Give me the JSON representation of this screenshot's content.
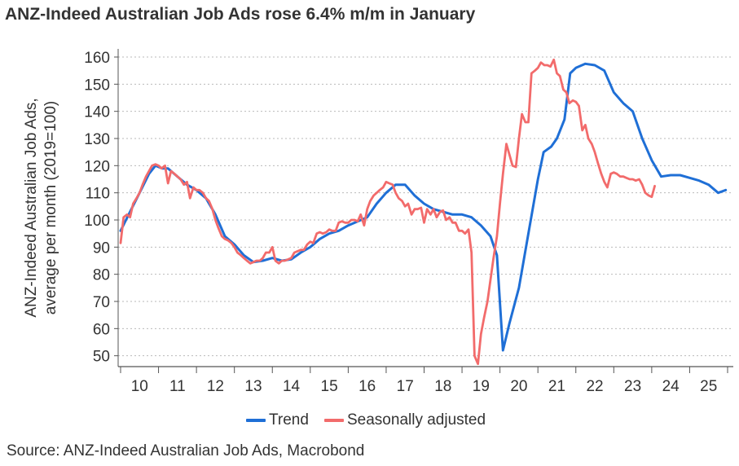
{
  "title": "ANZ-Indeed Australian Job Ads rose 6.4% m/m in January",
  "source": "Source: ANZ-Indeed Australian Job Ads, Macrobond",
  "chart_data": {
    "type": "line",
    "title": "ANZ-Indeed Australian Job Ads rose 6.4% m/m in January",
    "ylabel_lines": [
      "ANZ-Indeed Australian Job Ads,",
      "average per month (2019=100)"
    ],
    "xlabel": "",
    "ylim": [
      46,
      163
    ],
    "yticks": [
      50,
      60,
      70,
      80,
      90,
      100,
      110,
      120,
      130,
      140,
      150,
      160
    ],
    "xlim": [
      2010.0,
      2026.0
    ],
    "xticks": [
      "10",
      "11",
      "12",
      "13",
      "14",
      "15",
      "16",
      "17",
      "18",
      "19",
      "20",
      "21",
      "22",
      "23",
      "24",
      "25"
    ],
    "grid": "horizontal dotted",
    "legend_placement": "bottom-center",
    "series": [
      {
        "name": "Trend",
        "color": "#1f6fd6",
        "points": [
          [
            2010.0,
            96
          ],
          [
            2010.25,
            103
          ],
          [
            2010.5,
            110
          ],
          [
            2010.75,
            117
          ],
          [
            2010.92,
            120
          ],
          [
            2011.1,
            119
          ],
          [
            2011.25,
            119
          ],
          [
            2011.5,
            116
          ],
          [
            2011.75,
            113
          ],
          [
            2012.0,
            111
          ],
          [
            2012.25,
            108
          ],
          [
            2012.5,
            102
          ],
          [
            2012.75,
            94
          ],
          [
            2013.0,
            91
          ],
          [
            2013.25,
            87
          ],
          [
            2013.5,
            84.5
          ],
          [
            2013.75,
            85
          ],
          [
            2014.0,
            86
          ],
          [
            2014.25,
            85
          ],
          [
            2014.5,
            85.5
          ],
          [
            2014.75,
            88
          ],
          [
            2015.0,
            90
          ],
          [
            2015.25,
            93
          ],
          [
            2015.5,
            95
          ],
          [
            2015.75,
            96
          ],
          [
            2016.0,
            98
          ],
          [
            2016.25,
            99.5
          ],
          [
            2016.5,
            101
          ],
          [
            2016.75,
            106
          ],
          [
            2017.0,
            110
          ],
          [
            2017.25,
            113
          ],
          [
            2017.5,
            113
          ],
          [
            2017.75,
            109
          ],
          [
            2018.0,
            106
          ],
          [
            2018.25,
            104
          ],
          [
            2018.5,
            103
          ],
          [
            2018.75,
            102
          ],
          [
            2019.0,
            102
          ],
          [
            2019.25,
            101
          ],
          [
            2019.5,
            98
          ],
          [
            2019.75,
            94
          ],
          [
            2019.92,
            87
          ],
          [
            2020.08,
            52
          ],
          [
            2020.25,
            62
          ],
          [
            2020.5,
            75
          ],
          [
            2020.75,
            95
          ],
          [
            2021.0,
            115
          ],
          [
            2021.15,
            125
          ],
          [
            2021.35,
            127
          ],
          [
            2021.5,
            130
          ],
          [
            2021.7,
            137
          ],
          [
            2021.85,
            154
          ],
          [
            2022.0,
            156
          ],
          [
            2022.25,
            157.5
          ],
          [
            2022.5,
            157
          ],
          [
            2022.75,
            155
          ],
          [
            2023.0,
            147
          ],
          [
            2023.25,
            143
          ],
          [
            2023.5,
            140
          ],
          [
            2023.75,
            130
          ],
          [
            2024.0,
            122
          ],
          [
            2024.25,
            116
          ],
          [
            2024.5,
            116.5
          ],
          [
            2024.75,
            116.5
          ],
          [
            2025.0,
            115.5
          ],
          [
            2025.25,
            114.5
          ],
          [
            2025.5,
            113
          ],
          [
            2025.75,
            110
          ],
          [
            2025.95,
            111
          ]
        ]
      },
      {
        "name": "Seasonally adjusted",
        "color": "#f26b6b",
        "points": [
          [
            2010.0,
            91.5
          ],
          [
            2010.08,
            101
          ],
          [
            2010.17,
            102
          ],
          [
            2010.25,
            101
          ],
          [
            2010.33,
            106
          ],
          [
            2010.42,
            108
          ],
          [
            2010.5,
            110
          ],
          [
            2010.58,
            113
          ],
          [
            2010.67,
            116
          ],
          [
            2010.75,
            118
          ],
          [
            2010.83,
            120
          ],
          [
            2010.92,
            120.5
          ],
          [
            2011.0,
            120
          ],
          [
            2011.08,
            119
          ],
          [
            2011.17,
            120
          ],
          [
            2011.25,
            113.5
          ],
          [
            2011.33,
            118
          ],
          [
            2011.42,
            117
          ],
          [
            2011.5,
            116
          ],
          [
            2011.58,
            115
          ],
          [
            2011.67,
            113
          ],
          [
            2011.75,
            114
          ],
          [
            2011.83,
            108
          ],
          [
            2011.92,
            112
          ],
          [
            2012.0,
            111
          ],
          [
            2012.08,
            111
          ],
          [
            2012.17,
            110
          ],
          [
            2012.25,
            108
          ],
          [
            2012.33,
            107
          ],
          [
            2012.42,
            104
          ],
          [
            2012.5,
            100
          ],
          [
            2012.58,
            97
          ],
          [
            2012.67,
            94
          ],
          [
            2012.75,
            93
          ],
          [
            2012.83,
            92.5
          ],
          [
            2012.92,
            91.5
          ],
          [
            2013.0,
            90
          ],
          [
            2013.08,
            88
          ],
          [
            2013.17,
            87
          ],
          [
            2013.25,
            86
          ],
          [
            2013.33,
            85
          ],
          [
            2013.42,
            84
          ],
          [
            2013.5,
            84.5
          ],
          [
            2013.58,
            85
          ],
          [
            2013.67,
            85
          ],
          [
            2013.75,
            86
          ],
          [
            2013.83,
            88
          ],
          [
            2013.92,
            88
          ],
          [
            2014.0,
            90
          ],
          [
            2014.08,
            85
          ],
          [
            2014.17,
            84
          ],
          [
            2014.25,
            85
          ],
          [
            2014.33,
            85
          ],
          [
            2014.42,
            85.5
          ],
          [
            2014.5,
            86
          ],
          [
            2014.58,
            88
          ],
          [
            2014.67,
            88.5
          ],
          [
            2014.75,
            89
          ],
          [
            2014.83,
            89
          ],
          [
            2014.92,
            91
          ],
          [
            2015.0,
            92
          ],
          [
            2015.08,
            91.5
          ],
          [
            2015.17,
            95
          ],
          [
            2015.25,
            95.5
          ],
          [
            2015.33,
            95
          ],
          [
            2015.42,
            95.5
          ],
          [
            2015.5,
            96.5
          ],
          [
            2015.58,
            96
          ],
          [
            2015.67,
            96
          ],
          [
            2015.75,
            99
          ],
          [
            2015.83,
            99.5
          ],
          [
            2015.92,
            99
          ],
          [
            2016.0,
            99
          ],
          [
            2016.08,
            100
          ],
          [
            2016.17,
            100
          ],
          [
            2016.25,
            99.5
          ],
          [
            2016.33,
            102
          ],
          [
            2016.42,
            98
          ],
          [
            2016.5,
            104
          ],
          [
            2016.58,
            107
          ],
          [
            2016.67,
            109
          ],
          [
            2016.75,
            110
          ],
          [
            2016.83,
            111
          ],
          [
            2016.92,
            112
          ],
          [
            2017.0,
            114
          ],
          [
            2017.08,
            113.5
          ],
          [
            2017.17,
            113
          ],
          [
            2017.25,
            110
          ],
          [
            2017.33,
            108
          ],
          [
            2017.42,
            107
          ],
          [
            2017.5,
            105
          ],
          [
            2017.58,
            106
          ],
          [
            2017.67,
            102
          ],
          [
            2017.75,
            104
          ],
          [
            2017.83,
            104
          ],
          [
            2017.92,
            104.5
          ],
          [
            2018.0,
            99
          ],
          [
            2018.08,
            104
          ],
          [
            2018.17,
            102
          ],
          [
            2018.25,
            104
          ],
          [
            2018.33,
            101
          ],
          [
            2018.42,
            103
          ],
          [
            2018.5,
            103.5
          ],
          [
            2018.58,
            100
          ],
          [
            2018.67,
            101
          ],
          [
            2018.75,
            99
          ],
          [
            2018.83,
            99
          ],
          [
            2018.92,
            96
          ],
          [
            2019.0,
            96
          ],
          [
            2019.08,
            95
          ],
          [
            2019.17,
            96.5
          ],
          [
            2019.25,
            88
          ],
          [
            2019.33,
            50
          ],
          [
            2019.42,
            47
          ],
          [
            2019.5,
            58
          ],
          [
            2019.58,
            64
          ],
          [
            2019.67,
            70
          ],
          [
            2019.75,
            78
          ],
          [
            2019.83,
            86
          ],
          [
            2019.92,
            94
          ],
          [
            2020.0,
            106
          ],
          [
            2020.08,
            117
          ],
          [
            2020.17,
            128
          ],
          [
            2020.25,
            124
          ],
          [
            2020.33,
            120
          ],
          [
            2020.42,
            119.5
          ],
          [
            2020.5,
            130
          ],
          [
            2020.58,
            139
          ],
          [
            2020.67,
            136
          ],
          [
            2020.75,
            136
          ],
          [
            2020.83,
            154
          ],
          [
            2020.92,
            155
          ],
          [
            2021.0,
            156
          ],
          [
            2021.08,
            158
          ],
          [
            2021.17,
            157
          ],
          [
            2021.25,
            157
          ],
          [
            2021.33,
            156.5
          ],
          [
            2021.42,
            159
          ],
          [
            2021.5,
            154
          ],
          [
            2021.58,
            153
          ],
          [
            2021.67,
            148
          ],
          [
            2021.75,
            147
          ],
          [
            2021.83,
            143
          ],
          [
            2021.92,
            144
          ],
          [
            2022.0,
            143.5
          ],
          [
            2022.08,
            142
          ],
          [
            2022.17,
            133
          ],
          [
            2022.25,
            135
          ],
          [
            2022.33,
            130
          ],
          [
            2022.42,
            128
          ],
          [
            2022.5,
            125
          ],
          [
            2022.58,
            121
          ],
          [
            2022.67,
            117
          ],
          [
            2022.75,
            114
          ],
          [
            2022.83,
            112
          ],
          [
            2022.92,
            117
          ],
          [
            2023.0,
            117.5
          ],
          [
            2023.08,
            117
          ],
          [
            2023.17,
            116
          ],
          [
            2023.25,
            116
          ],
          [
            2023.33,
            115.5
          ],
          [
            2023.42,
            115
          ],
          [
            2023.5,
            115
          ],
          [
            2023.58,
            114.5
          ],
          [
            2023.67,
            115
          ],
          [
            2023.75,
            113
          ],
          [
            2023.83,
            110
          ],
          [
            2023.92,
            109
          ],
          [
            2024.0,
            108.5
          ],
          [
            2024.08,
            112.5
          ]
        ]
      }
    ]
  },
  "legend": [
    {
      "label": "Trend",
      "color": "#1f6fd6"
    },
    {
      "label": "Seasonally adjusted",
      "color": "#f26b6b"
    }
  ]
}
